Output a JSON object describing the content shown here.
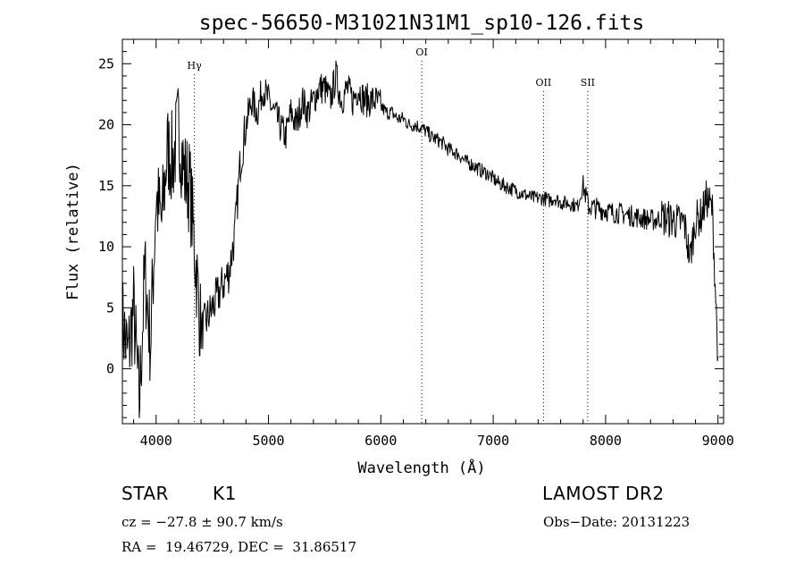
{
  "chart_data": {
    "type": "line",
    "title": "spec-56650-M31021N31M1_sp10-126.fits",
    "xlabel": "Wavelength (Å)",
    "ylabel": "Flux (relative)",
    "xlim": [
      3700,
      9050
    ],
    "ylim": [
      -4.5,
      27
    ],
    "xticks": [
      4000,
      5000,
      6000,
      7000,
      8000,
      9000
    ],
    "yticks": [
      0,
      5,
      10,
      15,
      20,
      25
    ],
    "grid": false,
    "series": [
      {
        "x": [
          3700,
          3750,
          3800,
          3850,
          3900,
          3950,
          4000,
          4050,
          4100,
          4150,
          4200,
          4250,
          4300,
          4350,
          4400,
          4450,
          4500,
          4550,
          4600,
          4650,
          4700,
          4750,
          4800,
          4850,
          4900,
          4950,
          5000,
          5050,
          5100,
          5150,
          5200,
          5250,
          5300,
          5350,
          5400,
          5450,
          5500,
          5550,
          5600,
          5650,
          5700,
          5750,
          5800,
          5850,
          5900,
          5950,
          6000,
          6050,
          6100,
          6150,
          6200,
          6250,
          6300,
          6350,
          6400,
          6450,
          6500,
          6550,
          6600,
          6650,
          6700,
          6750,
          6800,
          6850,
          6900,
          6950,
          7000,
          7050,
          7100,
          7150,
          7200,
          7250,
          7300,
          7350,
          7400,
          7450,
          7500,
          7550,
          7600,
          7650,
          7700,
          7750,
          7800,
          7850,
          7900,
          7950,
          8000,
          8050,
          8100,
          8150,
          8200,
          8250,
          8300,
          8350,
          8400,
          8450,
          8500,
          8550,
          8600,
          8650,
          8700,
          8750,
          8800,
          8850,
          8900,
          8950,
          9000
        ],
        "y": [
          4,
          1,
          5,
          -3,
          8,
          2,
          14,
          12,
          18,
          17,
          20,
          16,
          15,
          9,
          3,
          4,
          5,
          6,
          7,
          8,
          11,
          17,
          20,
          22,
          21,
          23,
          22,
          21,
          20,
          19,
          21,
          20,
          22,
          21,
          22,
          23,
          23,
          22,
          24,
          22,
          23,
          22,
          23,
          22,
          22,
          22,
          21.5,
          21,
          21,
          20.5,
          20.5,
          20,
          20,
          19.8,
          19.5,
          19,
          18.8,
          18.5,
          18,
          17.8,
          17.5,
          17,
          16.8,
          16.5,
          16.2,
          16,
          15.6,
          15.2,
          15,
          14.8,
          14.6,
          14.4,
          14.2,
          14,
          14,
          14,
          13.8,
          14,
          13.6,
          13.6,
          13.5,
          13.3,
          15,
          13.3,
          13.2,
          13.1,
          13,
          12.8,
          12.8,
          12.7,
          12.6,
          12.5,
          12.4,
          12.3,
          12.2,
          12.2,
          12.4,
          12.3,
          12.2,
          12,
          12,
          9,
          12.2,
          12.5,
          14,
          13,
          1
        ]
      }
    ],
    "spectral_lines": [
      {
        "label": "Hγ",
        "wavelength": 4341
      },
      {
        "label": "OI",
        "wavelength": 6364
      },
      {
        "label": "OII",
        "wavelength": 7447
      },
      {
        "label": "SII",
        "wavelength": 7841
      }
    ]
  },
  "info": {
    "object_class": "STAR",
    "subclass": "K1",
    "survey": "LAMOST DR2",
    "redshift": "cz = −27.8 ± 90.7 km/s",
    "obs_date": "Obs−Date: 20131223",
    "coords": "RA =  19.46729, DEC =  31.86517"
  }
}
